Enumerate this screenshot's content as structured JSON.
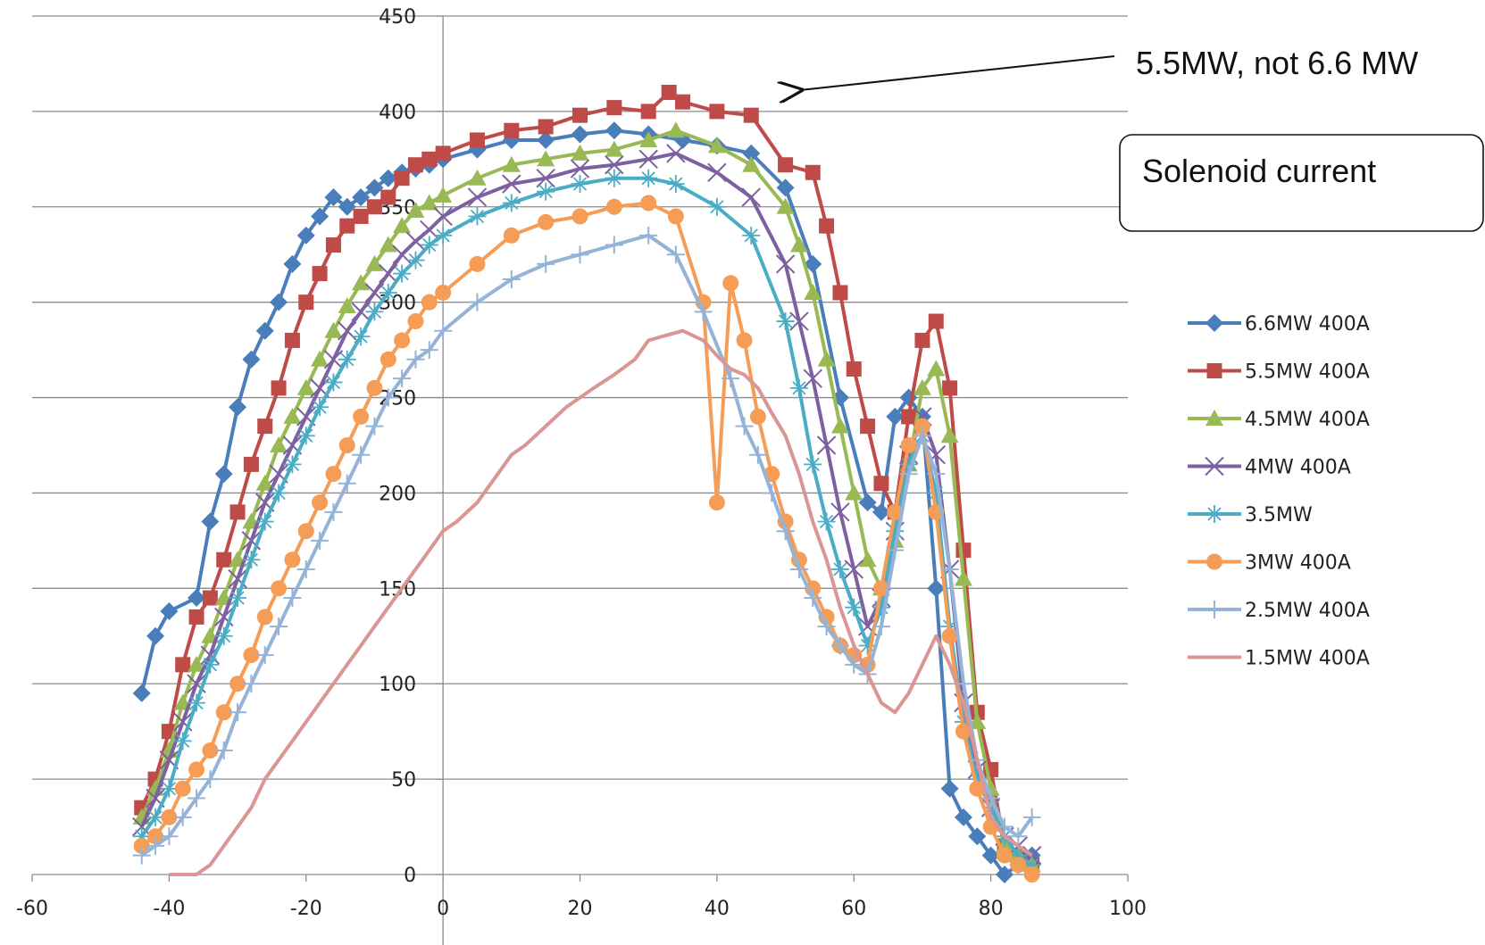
{
  "chart_data": {
    "type": "line",
    "title": "",
    "xlabel": "",
    "ylabel": "",
    "xlim": [
      -60,
      100
    ],
    "ylim": [
      0,
      450
    ],
    "x_ticks": [
      -60,
      -40,
      -20,
      0,
      20,
      40,
      60,
      80,
      100
    ],
    "y_ticks": [
      0,
      50,
      100,
      150,
      200,
      250,
      300,
      350,
      400,
      450
    ],
    "grid": "horizontal",
    "legend_position": "right",
    "annotations": {
      "arrow_text": "5.5MW, not 6.6 MW",
      "box_text": "Solenoid current"
    },
    "series": [
      {
        "name": "6.6MW 400A",
        "color": "#4a7ebb",
        "marker": "diamond",
        "x": [
          -44,
          -42,
          -40,
          -36,
          -34,
          -32,
          -30,
          -28,
          -26,
          -24,
          -22,
          -20,
          -18,
          -16,
          -14,
          -12,
          -10,
          -8,
          -6,
          -4,
          -2,
          0,
          5,
          10,
          15,
          20,
          25,
          30,
          35,
          40,
          45,
          50,
          54,
          58,
          62,
          64,
          66,
          68,
          70,
          72,
          74,
          76,
          78,
          80,
          82,
          84,
          86
        ],
        "y": [
          95,
          125,
          138,
          145,
          185,
          210,
          245,
          270,
          285,
          300,
          320,
          335,
          345,
          355,
          350,
          355,
          360,
          365,
          368,
          370,
          372,
          375,
          380,
          385,
          385,
          388,
          390,
          388,
          385,
          382,
          378,
          360,
          320,
          250,
          195,
          190,
          240,
          250,
          240,
          150,
          45,
          30,
          20,
          10,
          0,
          5,
          10
        ]
      },
      {
        "name": "5.5MW 400A",
        "color": "#be4b48",
        "marker": "square",
        "x": [
          -44,
          -42,
          -40,
          -38,
          -36,
          -34,
          -32,
          -30,
          -28,
          -26,
          -24,
          -22,
          -20,
          -18,
          -16,
          -14,
          -12,
          -10,
          -8,
          -6,
          -4,
          -2,
          0,
          5,
          10,
          15,
          20,
          25,
          30,
          33,
          35,
          40,
          45,
          50,
          54,
          56,
          58,
          60,
          62,
          64,
          66,
          68,
          70,
          72,
          74,
          76,
          78,
          80,
          82,
          84,
          86
        ],
        "y": [
          35,
          50,
          75,
          110,
          135,
          145,
          165,
          190,
          215,
          235,
          255,
          280,
          300,
          315,
          330,
          340,
          345,
          350,
          355,
          365,
          372,
          375,
          378,
          385,
          390,
          392,
          398,
          402,
          400,
          410,
          405,
          400,
          398,
          372,
          368,
          340,
          305,
          265,
          235,
          205,
          190,
          240,
          280,
          290,
          255,
          170,
          85,
          55,
          15,
          10,
          5
        ]
      },
      {
        "name": "4.5MW 400A",
        "color": "#98b954",
        "marker": "triangle",
        "x": [
          -44,
          -42,
          -40,
          -38,
          -36,
          -34,
          -32,
          -30,
          -28,
          -26,
          -24,
          -22,
          -20,
          -18,
          -16,
          -14,
          -12,
          -10,
          -8,
          -6,
          -4,
          -2,
          0,
          5,
          10,
          15,
          20,
          25,
          30,
          34,
          40,
          45,
          50,
          52,
          54,
          56,
          58,
          60,
          62,
          64,
          66,
          68,
          70,
          72,
          74,
          76,
          78,
          80,
          82,
          84,
          86
        ],
        "y": [
          30,
          45,
          65,
          90,
          110,
          125,
          145,
          165,
          185,
          205,
          225,
          240,
          255,
          270,
          285,
          298,
          310,
          320,
          330,
          340,
          348,
          352,
          356,
          365,
          372,
          375,
          378,
          380,
          385,
          390,
          382,
          372,
          350,
          330,
          305,
          270,
          235,
          200,
          165,
          150,
          175,
          215,
          255,
          265,
          230,
          155,
          80,
          45,
          15,
          10,
          5
        ]
      },
      {
        "name": "4MW 400A",
        "color": "#7d60a0",
        "marker": "x",
        "x": [
          -44,
          -42,
          -40,
          -38,
          -36,
          -34,
          -32,
          -30,
          -28,
          -26,
          -24,
          -22,
          -20,
          -18,
          -16,
          -14,
          -12,
          -10,
          -8,
          -6,
          -4,
          -2,
          0,
          5,
          10,
          15,
          20,
          25,
          30,
          34,
          40,
          45,
          50,
          52,
          54,
          56,
          58,
          60,
          62,
          64,
          66,
          68,
          70,
          72,
          74,
          76,
          78,
          80,
          82,
          84,
          86
        ],
        "y": [
          25,
          40,
          60,
          80,
          100,
          115,
          135,
          155,
          175,
          195,
          210,
          225,
          240,
          255,
          270,
          285,
          295,
          305,
          315,
          325,
          332,
          338,
          345,
          355,
          362,
          365,
          370,
          372,
          375,
          378,
          368,
          355,
          320,
          290,
          260,
          225,
          190,
          160,
          130,
          145,
          180,
          220,
          240,
          220,
          160,
          90,
          55,
          35,
          20,
          15,
          10
        ]
      },
      {
        "name": "3.5MW",
        "color": "#4bacc6",
        "marker": "star",
        "x": [
          -44,
          -42,
          -40,
          -38,
          -36,
          -34,
          -32,
          -30,
          -28,
          -26,
          -24,
          -22,
          -20,
          -18,
          -16,
          -14,
          -12,
          -10,
          -8,
          -6,
          -4,
          -2,
          0,
          5,
          10,
          15,
          20,
          25,
          30,
          34,
          40,
          45,
          50,
          52,
          54,
          56,
          58,
          60,
          62,
          64,
          66,
          68,
          70,
          72,
          74,
          76,
          78,
          80,
          82,
          84,
          86
        ],
        "y": [
          20,
          30,
          45,
          70,
          90,
          110,
          125,
          145,
          165,
          185,
          200,
          215,
          230,
          245,
          258,
          270,
          282,
          295,
          305,
          315,
          322,
          330,
          335,
          345,
          352,
          358,
          362,
          365,
          365,
          362,
          350,
          335,
          290,
          255,
          215,
          185,
          160,
          140,
          120,
          140,
          180,
          215,
          230,
          200,
          130,
          80,
          50,
          35,
          20,
          10,
          5
        ]
      },
      {
        "name": "3MW 400A",
        "color": "#f59d56",
        "marker": "circle",
        "x": [
          -44,
          -42,
          -40,
          -38,
          -36,
          -34,
          -32,
          -30,
          -28,
          -26,
          -24,
          -22,
          -20,
          -18,
          -16,
          -14,
          -12,
          -10,
          -8,
          -6,
          -4,
          -2,
          0,
          5,
          10,
          15,
          20,
          25,
          30,
          34,
          38,
          40,
          42,
          44,
          46,
          48,
          50,
          52,
          54,
          56,
          58,
          60,
          62,
          64,
          66,
          68,
          70,
          72,
          74,
          76,
          78,
          80,
          82,
          84,
          86
        ],
        "y": [
          15,
          20,
          30,
          45,
          55,
          65,
          85,
          100,
          115,
          135,
          150,
          165,
          180,
          195,
          210,
          225,
          240,
          255,
          270,
          280,
          290,
          300,
          305,
          320,
          335,
          342,
          345,
          350,
          352,
          345,
          300,
          195,
          310,
          280,
          240,
          210,
          185,
          165,
          150,
          135,
          120,
          115,
          110,
          150,
          190,
          225,
          235,
          190,
          125,
          75,
          45,
          25,
          10,
          5,
          0
        ]
      },
      {
        "name": "2.5MW 400A",
        "color": "#95b3d7",
        "marker": "plus",
        "x": [
          -44,
          -42,
          -40,
          -38,
          -36,
          -34,
          -32,
          -30,
          -28,
          -26,
          -24,
          -22,
          -20,
          -18,
          -16,
          -14,
          -12,
          -10,
          -8,
          -6,
          -4,
          -2,
          0,
          5,
          10,
          15,
          20,
          25,
          30,
          34,
          38,
          42,
          44,
          46,
          48,
          50,
          52,
          54,
          56,
          58,
          60,
          62,
          64,
          66,
          68,
          70,
          72,
          74,
          76,
          78,
          80,
          82,
          84,
          86
        ],
        "y": [
          10,
          15,
          20,
          30,
          40,
          50,
          65,
          85,
          100,
          115,
          130,
          145,
          160,
          175,
          190,
          205,
          220,
          235,
          250,
          260,
          270,
          275,
          285,
          300,
          312,
          320,
          325,
          330,
          335,
          325,
          295,
          260,
          235,
          220,
          200,
          180,
          160,
          145,
          130,
          120,
          110,
          105,
          130,
          170,
          210,
          230,
          210,
          160,
          100,
          60,
          40,
          25,
          20,
          30
        ]
      },
      {
        "name": "1.5MW 400A",
        "color": "#d99694",
        "marker": "none",
        "x": [
          -40,
          -38,
          -36,
          -34,
          -32,
          -30,
          -28,
          -26,
          -24,
          -22,
          -20,
          -18,
          -16,
          -14,
          -12,
          -10,
          -8,
          -6,
          -4,
          -2,
          0,
          2,
          5,
          8,
          10,
          12,
          15,
          18,
          20,
          22,
          25,
          28,
          30,
          32,
          35,
          38,
          40,
          42,
          44,
          46,
          48,
          50,
          52,
          54,
          56,
          58,
          60,
          62,
          64,
          66,
          68,
          70,
          72,
          74,
          76,
          78,
          80,
          82,
          84,
          86
        ],
        "y": [
          0,
          0,
          0,
          5,
          15,
          25,
          35,
          50,
          60,
          70,
          80,
          90,
          100,
          110,
          120,
          130,
          140,
          150,
          160,
          170,
          180,
          185,
          195,
          210,
          220,
          225,
          235,
          245,
          250,
          255,
          262,
          270,
          280,
          282,
          285,
          280,
          272,
          265,
          262,
          255,
          242,
          230,
          210,
          185,
          165,
          140,
          120,
          105,
          90,
          85,
          95,
          110,
          125,
          110,
          90,
          60,
          30,
          20,
          15,
          10
        ]
      }
    ]
  }
}
